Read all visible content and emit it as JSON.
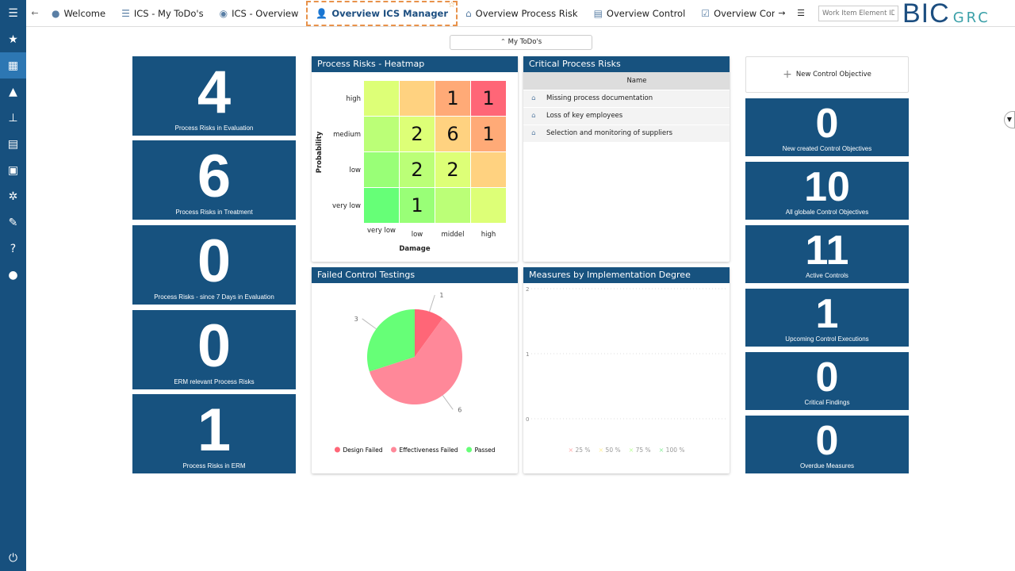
{
  "tabs": [
    {
      "label": "Welcome",
      "icon": "user-circle-icon"
    },
    {
      "label": "ICS - My ToDo's",
      "icon": "list-icon"
    },
    {
      "label": "ICS - Overview",
      "icon": "eye-icon"
    },
    {
      "label": "Overview ICS Manager",
      "icon": "user-shield-icon",
      "active": true
    },
    {
      "label": "Overview Process Risk",
      "icon": "house-risk-icon"
    },
    {
      "label": "Overview Control",
      "icon": "clipboard-icon"
    },
    {
      "label": "Overview Control Testing",
      "icon": "clipboard-check-icon"
    }
  ],
  "search": {
    "placeholder": "Work Item Element ID"
  },
  "logo": {
    "main": "BIC",
    "sub": "GRC"
  },
  "todo_button": "My ToDo's",
  "left_tiles": [
    {
      "value": "4",
      "label": "Process Risks in Evaluation"
    },
    {
      "value": "6",
      "label": "Process Risks in Treatment"
    },
    {
      "value": "0",
      "label": "Process Risks - since 7 Days in Evaluation"
    },
    {
      "value": "0",
      "label": "ERM relevant Process Risks"
    },
    {
      "value": "1",
      "label": "Process Risks in ERM"
    }
  ],
  "right": {
    "new_button": "New Control Objective",
    "tiles": [
      {
        "value": "0",
        "label": "New created Control Objectives"
      },
      {
        "value": "10",
        "label": "All globale Control Objectives"
      },
      {
        "value": "11",
        "label": "Active Controls"
      },
      {
        "value": "1",
        "label": "Upcoming Control Executions"
      },
      {
        "value": "0",
        "label": "Critical Findings"
      },
      {
        "value": "0",
        "label": "Overdue Measures"
      }
    ]
  },
  "heatmap": {
    "title": "Process Risks - Heatmap",
    "ylabel": "Probability",
    "xlabel": "Damage",
    "rows": [
      "high",
      "medium",
      "low",
      "very low"
    ],
    "cols": [
      "very low",
      "low",
      "middel",
      "high"
    ],
    "values": [
      [
        "",
        "",
        "1",
        "1"
      ],
      [
        "",
        "2",
        "6",
        "1"
      ],
      [
        "",
        "2",
        "2",
        ""
      ],
      [
        "",
        "1",
        "",
        ""
      ]
    ],
    "colors": [
      [
        "#ddff77",
        "#ffd280",
        "#ffaa77",
        "#ff6677"
      ],
      [
        "#bbff77",
        "#ddff77",
        "#ffd280",
        "#ffaa77"
      ],
      [
        "#99ff77",
        "#bbff77",
        "#ddff77",
        "#ffd280"
      ],
      [
        "#66ff77",
        "#99ff77",
        "#bbff77",
        "#ddff77"
      ]
    ]
  },
  "critical": {
    "title": "Critical Process Risks",
    "header": "Name",
    "rows": [
      "Missing process documentation",
      "Loss of key employees",
      "Selection and monitoring of suppliers"
    ]
  },
  "chart_data": [
    {
      "type": "pie",
      "title": "Failed Control Testings",
      "categories": [
        "Design Failed",
        "Effectiveness Failed",
        "Passed"
      ],
      "values": [
        1,
        6,
        3
      ],
      "colors": [
        "#ff6677",
        "#ff8899",
        "#66ff77"
      ],
      "legend": "bottom"
    },
    {
      "type": "line",
      "title": "Measures by Implementation Degree",
      "yticks": [
        "0",
        "1",
        "2"
      ],
      "ylim": [
        0,
        2
      ],
      "series": [
        {
          "name": "25 %",
          "color": "#ffaaaa"
        },
        {
          "name": "50 %",
          "color": "#ffee99"
        },
        {
          "name": "75 %",
          "color": "#bbff99"
        },
        {
          "name": "100 %",
          "color": "#88ee99"
        }
      ],
      "legend": "bottom",
      "grid": true
    }
  ]
}
